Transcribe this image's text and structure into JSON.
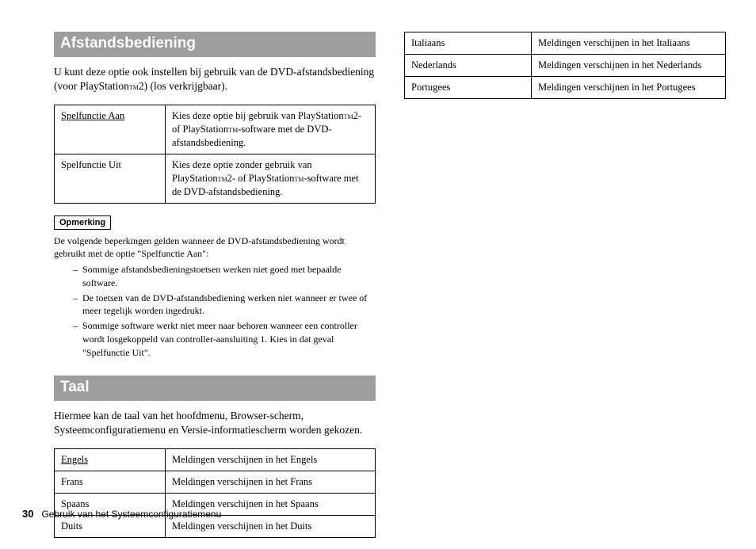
{
  "section1": {
    "title": "Afstandsbediening",
    "intro_a": "U kunt deze optie ook instellen bij gebruik van de DVD-afstandsbediening (voor PlayStation",
    "tm1": "TM",
    "intro_b": "2) (los verkrijgbaar).",
    "table": [
      {
        "key": "Spelfunctie Aan",
        "val_a": "Kies deze optie bij gebruik van PlayStation",
        "tm_a": "TM",
        "val_b": "2- of PlayStation",
        "tm_b": "TM",
        "val_c": "-software met de DVD-afstandsbediening.",
        "underline": true
      },
      {
        "key": "Spelfunctie Uit",
        "val_a": "Kies deze optie zonder gebruik van PlayStation",
        "tm_a": "TM",
        "val_b": "2- of PlayStation",
        "tm_b": "TM",
        "val_c": "-software met de DVD-afstandsbediening.",
        "underline": false
      }
    ],
    "note_label": "Opmerking",
    "note_text": "De volgende beperkingen gelden wanneer de DVD-afstandsbediening wordt gebruikt met de optie \"Spelfunctie Aan\":",
    "bullets": [
      "Sommige afstandsbedieningstoetsen werken niet goed met bepaalde software.",
      "De toetsen van de DVD-afstandsbediening werken niet wanneer er twee of meer tegelijk worden ingedrukt.",
      "Sommige software werkt niet meer naar behoren wanneer een controller wordt losgekoppeld van controller-aansluiting 1. Kies in dat geval \"Spelfunctie Uit\"."
    ]
  },
  "section2": {
    "title": "Taal",
    "intro": "Hiermee kan de taal van het hoofdmenu, Browser-scherm, Systeemconfiguratiemenu en Versie-informatiescherm worden gekozen.",
    "table_left": [
      {
        "key": "Engels",
        "val": "Meldingen verschijnen in het Engels",
        "underline": true
      },
      {
        "key": "Frans",
        "val": "Meldingen verschijnen in het Frans",
        "underline": false
      },
      {
        "key": "Spaans",
        "val": "Meldingen verschijnen in het Spaans",
        "underline": false
      },
      {
        "key": "Duits",
        "val": "Meldingen verschijnen in het Duits",
        "underline": false
      }
    ],
    "table_right": [
      {
        "key": "Italiaans",
        "val": "Meldingen verschijnen in het Italiaans"
      },
      {
        "key": "Nederlands",
        "val": "Meldingen verschijnen in het Nederlands"
      },
      {
        "key": "Portugees",
        "val": "Meldingen verschijnen in het Portugees"
      }
    ]
  },
  "footer": {
    "page": "30",
    "text": "Gebruik van het Systeemconfiguratiemenu"
  }
}
